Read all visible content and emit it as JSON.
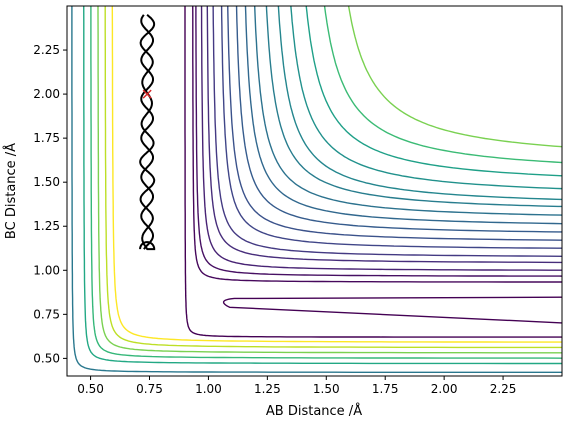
{
  "chart_data": {
    "type": "contour",
    "xlabel": "AB Distance /Å",
    "ylabel": "BC Distance /Å",
    "xlim": [
      0.4,
      2.5
    ],
    "ylim": [
      0.4,
      2.5
    ],
    "x_ticks": [
      "0.50",
      "0.75",
      "1.00",
      "1.25",
      "1.50",
      "1.75",
      "2.00",
      "2.25"
    ],
    "y_ticks": [
      "0.50",
      "0.75",
      "1.00",
      "1.25",
      "1.50",
      "1.75",
      "2.00",
      "2.25"
    ],
    "x_tick_values": [
      0.5,
      0.75,
      1.0,
      1.25,
      1.5,
      1.75,
      2.0,
      2.25
    ],
    "y_tick_values": [
      0.5,
      0.75,
      1.0,
      1.25,
      1.5,
      1.75,
      2.0,
      2.25
    ],
    "colormap": "viridis",
    "contour_levels_L_shape": [
      {
        "x_asym": 0.93,
        "y_asym": 0.65,
        "color": "#440154"
      },
      {
        "x_asym": 0.98,
        "y_asym": 0.98,
        "color": "#46085c"
      },
      {
        "x_asym": 1.01,
        "y_asym": 1.03,
        "color": "#471063"
      },
      {
        "x_asym": 1.05,
        "y_asym": 1.08,
        "color": "#482374"
      },
      {
        "x_asym": 1.09,
        "y_asym": 1.14,
        "color": "#472d7b"
      },
      {
        "x_asym": 1.13,
        "y_asym": 1.19,
        "color": "#443a83"
      },
      {
        "x_asym": 1.18,
        "y_asym": 1.25,
        "color": "#404688"
      },
      {
        "x_asym": 1.22,
        "y_asym": 1.31,
        "color": "#3b528b"
      },
      {
        "x_asym": 1.27,
        "y_asym": 1.37,
        "color": "#365c8d"
      },
      {
        "x_asym": 1.32,
        "y_asym": 1.43,
        "color": "#31688e"
      },
      {
        "x_asym": 1.37,
        "y_asym": 1.49,
        "color": "#2c728e"
      },
      {
        "x_asym": 1.43,
        "y_asym": 1.55,
        "color": "#287d8e"
      },
      {
        "x_asym": 1.49,
        "y_asym": 1.6,
        "color": "#24868e"
      },
      {
        "x_asym": 1.55,
        "y_asym": 1.67,
        "color": "#21918c"
      },
      {
        "x_asym": 1.62,
        "y_asym": 1.75,
        "color": "#1fa088"
      },
      {
        "x_asym": 1.7,
        "y_asym": 1.83,
        "color": "#3bbb75"
      },
      {
        "x_asym": 1.8,
        "y_asym": 1.92,
        "color": "#7ad151"
      }
    ],
    "bottom_bands": [
      0.45,
      0.5,
      0.53,
      0.56,
      0.59,
      0.62
    ],
    "inner_contour_loop": {
      "x_start": 1.03,
      "y": 0.84
    },
    "trajectory": {
      "color": "#000000",
      "x_center": 0.74,
      "y_range": [
        1.12,
        2.45
      ],
      "start_marker": {
        "x": 0.74,
        "y": 2.0,
        "symbol": "x",
        "color": "#d62728"
      }
    }
  }
}
